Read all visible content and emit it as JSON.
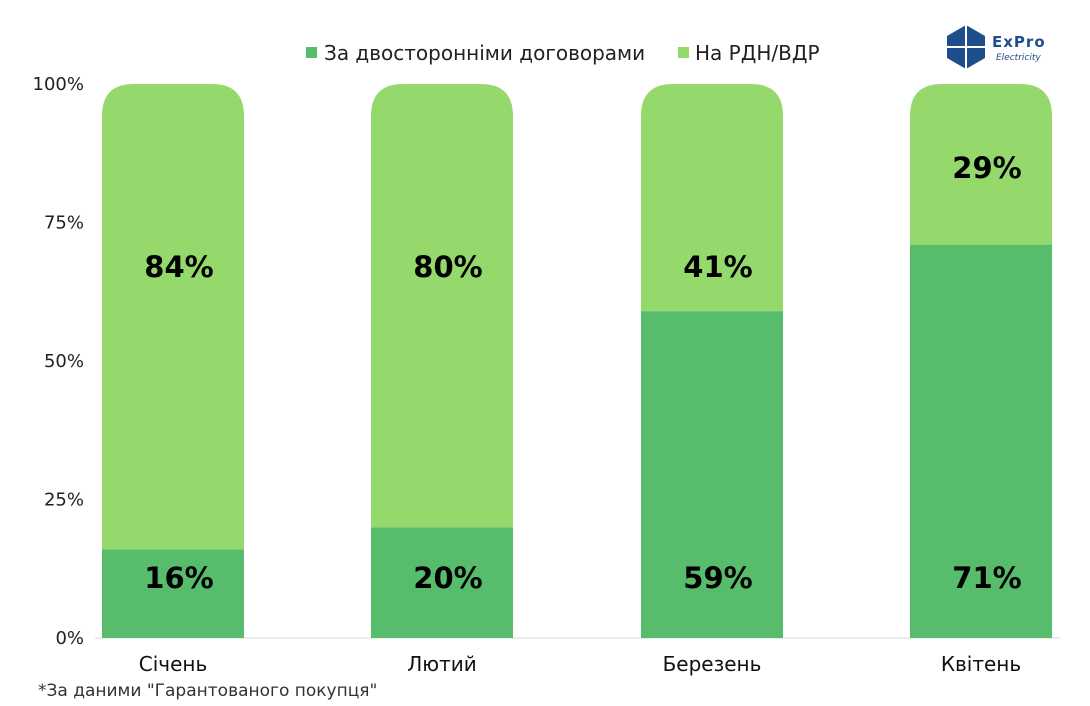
{
  "chart_data": {
    "type": "bar",
    "stacked": true,
    "categories": [
      "Січень",
      "Лютий",
      "Березень",
      "Квітень"
    ],
    "series": [
      {
        "name": "За двосторонніми договорами",
        "values": [
          16,
          20,
          59,
          71
        ],
        "labels": [
          "16%",
          "20%",
          "59%",
          "71%"
        ],
        "color": "#57bd6c"
      },
      {
        "name": "На РДН/ВДР",
        "values": [
          84,
          80,
          41,
          29
        ],
        "labels": [
          "84%",
          "80%",
          "41%",
          "29%"
        ],
        "color": "#95d86b"
      }
    ],
    "yticks": [
      "0%",
      "25%",
      "50%",
      "75%",
      "100%"
    ],
    "ylim": [
      0,
      100
    ],
    "legend_position": "top",
    "grid": false
  },
  "footnote": "*За даними \"Гарантованого покупця\"",
  "logo": {
    "text": "ExPro",
    "subtext": "Electricity",
    "color": "#1f4e8c"
  }
}
